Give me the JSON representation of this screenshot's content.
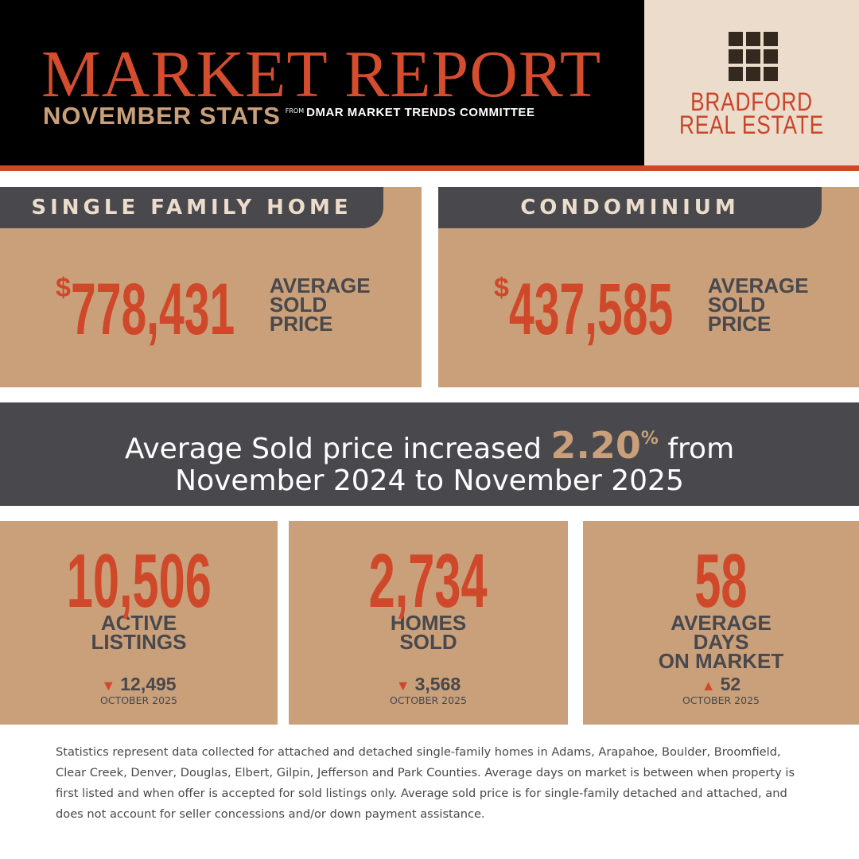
{
  "header": {
    "title": "MARKET REPORT",
    "subtitle": "NOVEMBER STATS",
    "source_prefix": "FROM",
    "source": "DMAR MARKET TRENDS COMMITTEE",
    "brand": [
      "BRADFORD",
      "REAL ESTATE"
    ]
  },
  "price_cards": [
    {
      "heading": "SINGLE FAMILY HOME",
      "currency": "$",
      "value": "778,431",
      "label": [
        "AVERAGE",
        "SOLD",
        "PRICE"
      ]
    },
    {
      "heading": "CONDOMINIUM",
      "currency": "$",
      "value": "437,585",
      "label": [
        "AVERAGE",
        "SOLD",
        "PRICE"
      ]
    }
  ],
  "banner": {
    "text_before": "Average Sold price increased",
    "highlight": "2.20",
    "highlight_unit": "%",
    "text_after": "from",
    "line2": "November 2024 to November 2025"
  },
  "stats": [
    {
      "value": "10,506",
      "label": [
        "ACTIVE",
        "LISTINGS"
      ],
      "trend": "down",
      "previous": "12,495",
      "previous_period": "OCTOBER 2025"
    },
    {
      "value": "2,734",
      "label": [
        "HOMES",
        "SOLD"
      ],
      "trend": "down",
      "previous": "3,568",
      "previous_period": "OCTOBER 2025"
    },
    {
      "value": "58",
      "label": [
        "AVERAGE",
        "DAYS",
        "ON MARKET"
      ],
      "trend": "up",
      "previous": "52",
      "previous_period": "OCTOBER 2025"
    }
  ],
  "footnote": "Statistics represent data collected for attached and detached single-family homes in Adams, Arapahoe, Boulder, Broomfield, Clear Creek, Denver, Douglas, Elbert, Gilpin, Jefferson and Park Counties. Average days on market is between when property is first listed and when offer is accepted for sold listings only. Average sold price is for single-family detached and attached, and does not account for seller concessions and/or down payment assistance."
}
